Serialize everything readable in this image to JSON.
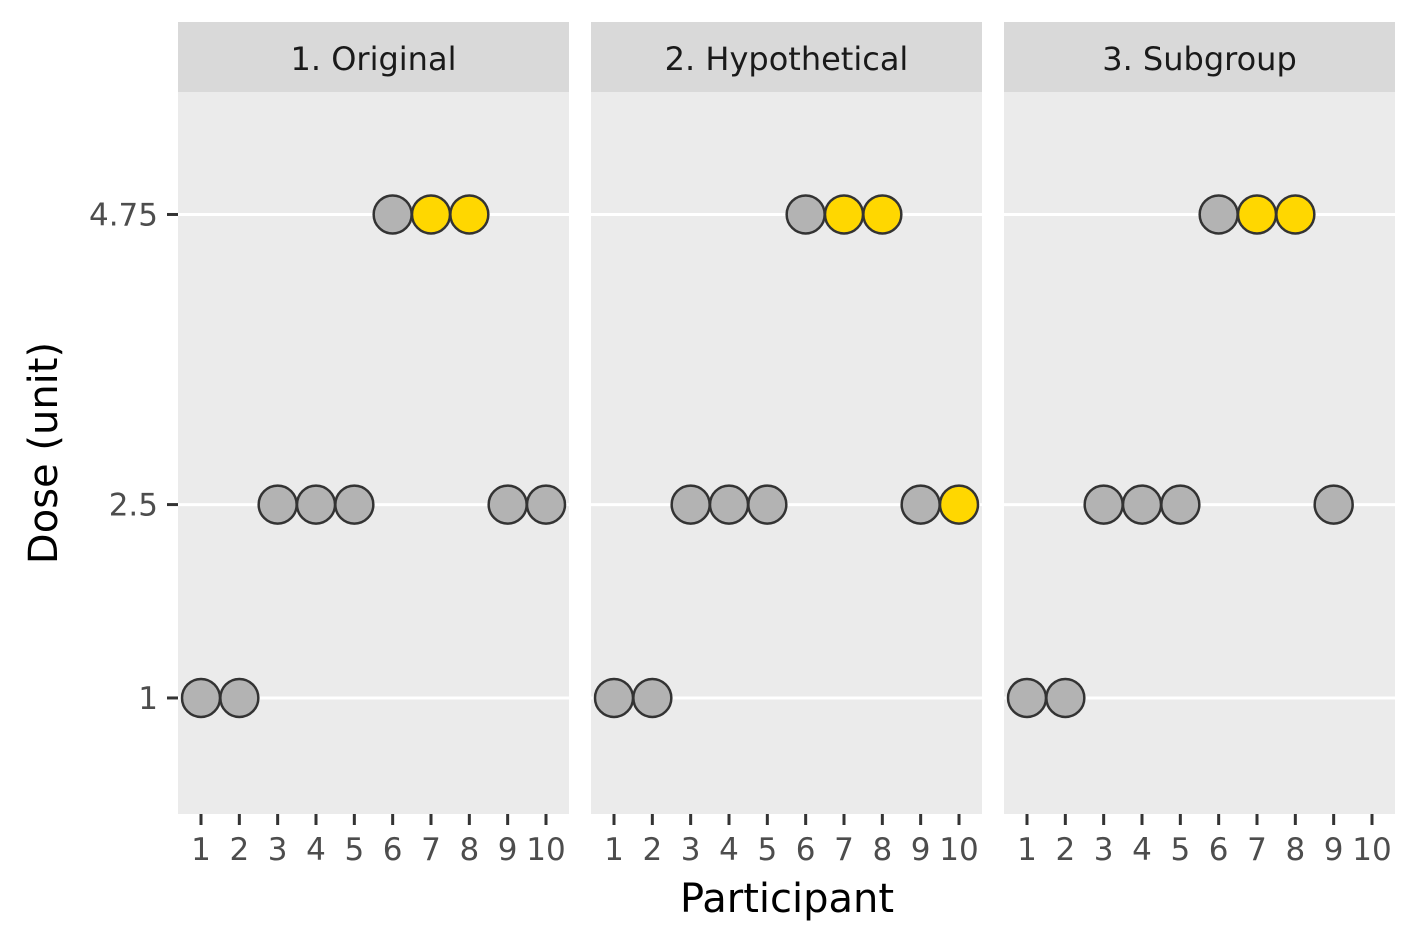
{
  "chart_data": {
    "type": "scatter",
    "xlabel": "Participant",
    "ylabel": "Dose (unit)",
    "x_ticks": [
      "1",
      "2",
      "3",
      "4",
      "5",
      "6",
      "7",
      "8",
      "9",
      "10"
    ],
    "y_ticks": [
      {
        "value": 1,
        "label": "1"
      },
      {
        "value": 2.5,
        "label": "2.5"
      },
      {
        "value": 4.75,
        "label": "4.75"
      }
    ],
    "xlim": [
      0.4,
      10.6
    ],
    "ylim": [
      0.1,
      5.7
    ],
    "grid": "horizontal-major",
    "colors": {
      "panel_bg": "#ebebeb",
      "strip_bg": "#d9d9d9",
      "grid": "#ffffff",
      "grey_point": "#b3b3b3",
      "highlight_point": "#ffd700",
      "point_outline": "#333333"
    },
    "panels": [
      {
        "title": "1. Original",
        "points": [
          {
            "x": 1,
            "y": 1,
            "highlight": false
          },
          {
            "x": 2,
            "y": 1,
            "highlight": false
          },
          {
            "x": 3,
            "y": 2.5,
            "highlight": false
          },
          {
            "x": 4,
            "y": 2.5,
            "highlight": false
          },
          {
            "x": 5,
            "y": 2.5,
            "highlight": false
          },
          {
            "x": 6,
            "y": 4.75,
            "highlight": false
          },
          {
            "x": 7,
            "y": 4.75,
            "highlight": true
          },
          {
            "x": 8,
            "y": 4.75,
            "highlight": true
          },
          {
            "x": 9,
            "y": 2.5,
            "highlight": false
          },
          {
            "x": 10,
            "y": 2.5,
            "highlight": false
          }
        ]
      },
      {
        "title": "2. Hypothetical",
        "points": [
          {
            "x": 1,
            "y": 1,
            "highlight": false
          },
          {
            "x": 2,
            "y": 1,
            "highlight": false
          },
          {
            "x": 3,
            "y": 2.5,
            "highlight": false
          },
          {
            "x": 4,
            "y": 2.5,
            "highlight": false
          },
          {
            "x": 5,
            "y": 2.5,
            "highlight": false
          },
          {
            "x": 6,
            "y": 4.75,
            "highlight": false
          },
          {
            "x": 7,
            "y": 4.75,
            "highlight": true
          },
          {
            "x": 8,
            "y": 4.75,
            "highlight": true
          },
          {
            "x": 9,
            "y": 2.5,
            "highlight": false
          },
          {
            "x": 10,
            "y": 2.5,
            "highlight": true
          }
        ]
      },
      {
        "title": "3. Subgroup",
        "points": [
          {
            "x": 1,
            "y": 1,
            "highlight": false
          },
          {
            "x": 2,
            "y": 1,
            "highlight": false
          },
          {
            "x": 3,
            "y": 2.5,
            "highlight": false
          },
          {
            "x": 4,
            "y": 2.5,
            "highlight": false
          },
          {
            "x": 5,
            "y": 2.5,
            "highlight": false
          },
          {
            "x": 6,
            "y": 4.75,
            "highlight": false
          },
          {
            "x": 7,
            "y": 4.75,
            "highlight": true
          },
          {
            "x": 8,
            "y": 4.75,
            "highlight": true
          },
          {
            "x": 9,
            "y": 2.5,
            "highlight": false
          }
        ]
      }
    ]
  }
}
